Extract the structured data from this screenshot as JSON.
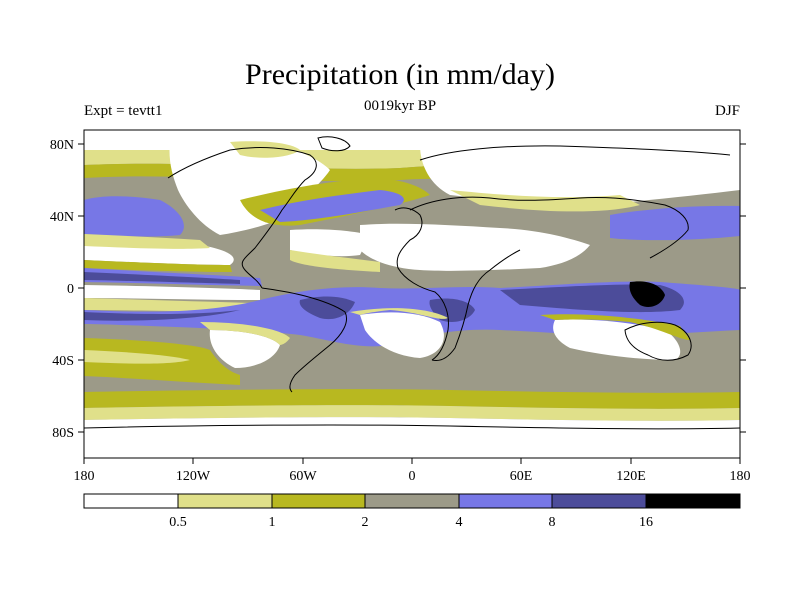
{
  "title": "Precipitation (in mm/day)",
  "subtitle": "0019kyr BP",
  "left_label": "Expt = tevtt1",
  "right_label": "DJF",
  "map": {
    "projection": "cylindrical equidistant",
    "lon_range": [
      -180,
      180
    ],
    "lat_range": [
      -90,
      90
    ],
    "lat_ticks": [
      "80N",
      "40N",
      "0",
      "40S",
      "80S"
    ],
    "lat_tick_values": [
      80,
      40,
      0,
      -40,
      -80
    ],
    "lon_ticks": [
      "180",
      "120W",
      "60W",
      "0",
      "60E",
      "120E",
      "180"
    ],
    "lon_tick_values": [
      -180,
      -120,
      -60,
      0,
      60,
      120,
      180
    ]
  },
  "colorbar": {
    "levels": [
      "0.5",
      "1",
      "2",
      "4",
      "8",
      "16"
    ],
    "colors": [
      "#ffffff",
      "#e0e08a",
      "#b8b820",
      "#9c9a88",
      "#7777e6",
      "#4c4c9a",
      "#000000"
    ]
  },
  "colors": {
    "white": "#ffffff",
    "pale": "#e0e08a",
    "olive": "#b8b820",
    "gray": "#9c9a88",
    "blue": "#7777e6",
    "dark_blue": "#4c4c9a",
    "black": "#000000"
  }
}
